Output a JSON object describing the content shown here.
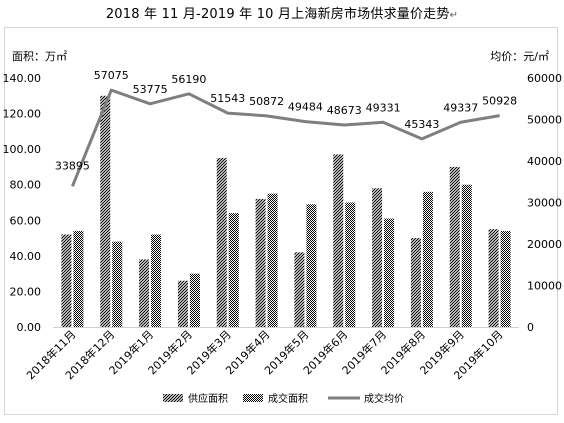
{
  "page_title": "2018 年 11 月-2019 年 10 月上海新房市场供求量价走势",
  "title_return_mark": "↵",
  "chart_data": {
    "type": "bar",
    "title": "2018 年 11 月-2019 年 10 月上海新房市场供求量价走势",
    "ylabel_left": "面积：万㎡",
    "ylabel_right": "均价：元/㎡",
    "ylim_left": [
      0,
      140
    ],
    "ylim_right": [
      0,
      60000
    ],
    "yticks_left": [
      "0.00",
      "20.00",
      "40.00",
      "60.00",
      "80.00",
      "100.00",
      "120.00",
      "140.00"
    ],
    "yticks_right": [
      "0",
      "10000",
      "20000",
      "30000",
      "40000",
      "50000",
      "60000"
    ],
    "categories": [
      "2018年11月",
      "2018年12月",
      "2019年1月",
      "2019年2月",
      "2019年3月",
      "2019年4月",
      "2019年5月",
      "2019年6月",
      "2019年7月",
      "2019年8月",
      "2019年9月",
      "2019年10月"
    ],
    "series": [
      {
        "name": "供应面积",
        "type": "bar",
        "axis": "left",
        "pattern": "diagonal-stripes",
        "values": [
          52,
          130,
          38,
          26,
          95,
          72,
          42,
          97,
          78,
          50,
          90,
          55
        ]
      },
      {
        "name": "成交面积",
        "type": "bar",
        "axis": "left",
        "pattern": "checker",
        "values": [
          54,
          48,
          52,
          30,
          64,
          75,
          69,
          70,
          61,
          76,
          80,
          54
        ]
      },
      {
        "name": "成交均价",
        "type": "line",
        "axis": "right",
        "color": "#7f7f7f",
        "values": [
          33895,
          57075,
          53775,
          56190,
          51543,
          50872,
          49484,
          48673,
          49331,
          45343,
          49337,
          50928
        ],
        "labels": [
          "33895",
          "57075",
          "53775",
          "56190",
          "51543",
          "50872",
          "49484",
          "48673",
          "49331",
          "45343",
          "49337",
          "50928"
        ]
      }
    ],
    "grid": false,
    "legend_position": "bottom"
  }
}
